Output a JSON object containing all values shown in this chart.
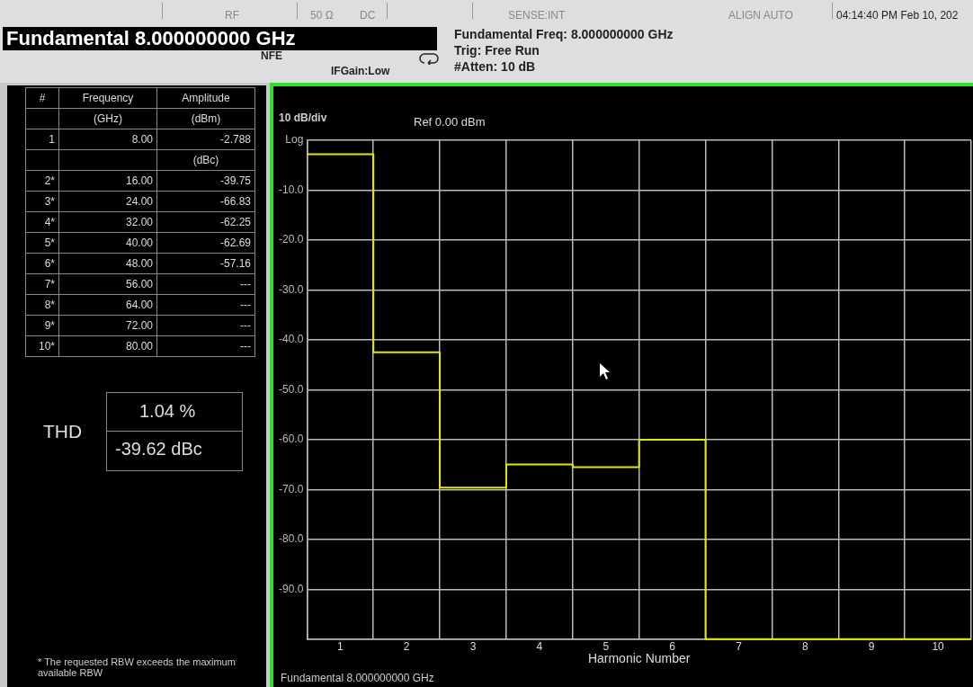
{
  "chart_data": {
    "type": "step",
    "title": "Fundamental 8.000000000 GHz",
    "xlabel": "Harmonic Number",
    "x": [
      0.5,
      1.5,
      2.5,
      3.5,
      4.5,
      5.5,
      6.5,
      7.5,
      8.5,
      9.5,
      10.5
    ],
    "series": [
      {
        "color": "#e6e600",
        "values": [
          -2.8,
          -42.5,
          -69.6,
          -65,
          -65.5,
          -60,
          -100,
          -100,
          -100,
          -100,
          -100
        ]
      }
    ],
    "xlim": [
      0.5,
      10.5
    ],
    "xticks": [
      {
        "value": 0.5,
        "label": null
      },
      1,
      {
        "value": 1.5,
        "label": null
      },
      2,
      {
        "value": 2.5,
        "label": null
      },
      3,
      {
        "value": 3.5,
        "label": null
      },
      4,
      {
        "value": 4.5,
        "label": null
      },
      5,
      {
        "value": 5.5,
        "label": null
      },
      6,
      {
        "value": 6.5,
        "label": null
      },
      7,
      {
        "value": 7.5,
        "label": null
      },
      8,
      {
        "value": 8.5,
        "label": null
      },
      9,
      {
        "value": 9.5,
        "label": null
      },
      10,
      {
        "value": 10.5,
        "label": null
      }
    ],
    "ylim": [
      -100,
      0
    ],
    "yticks": [
      {
        "value": 0,
        "label": "Log"
      },
      {
        "value": -10,
        "label": "-10.0"
      },
      {
        "value": -20,
        "label": "-20.0"
      },
      {
        "value": -30,
        "label": "-30.0"
      },
      {
        "value": -40,
        "label": "-40.0"
      },
      {
        "value": -50,
        "label": "-50.0"
      },
      {
        "value": -60,
        "label": "-60.0"
      },
      {
        "value": -70,
        "label": "-70.0"
      },
      {
        "value": -80,
        "label": "-80.0"
      },
      {
        "value": -90,
        "label": "-90.0"
      },
      {
        "value": -100,
        "label": null
      }
    ],
    "grid": true,
    "marker": "none",
    "line_style": "solid",
    "annotations": [
      "RF",
      "50 Ω",
      "DC",
      "SENSE:INT",
      "ALIGN AUTO",
      "04:14:40 PM Feb 10, 202",
      "NFE",
      "IFGain:Low",
      "Fundamental Freq: 8.000000000 GHz",
      "Trig: Free Run",
      "#Atten: 10 dB",
      "10 dB/div",
      "Ref 0.00 dBm",
      "THD",
      "1.04 %",
      "-39.62 dBc",
      "* The requested RBW exceeds the maximum available RBW",
      "Fundamental 8.000000000 GHz",
      "#\tFrequency\tAmplitude",
      "\t(GHz)\t(dBm)",
      "1\t8.00\t-2.788",
      "\t\t(dBc)",
      "2*\t16.00\t-39.75",
      "3*\t24.00\t-66.83",
      "4*\t32.00\t-62.25",
      "5*\t40.00\t-62.69",
      "6*\t48.00\t-57.16",
      "7*\t56.00\t---",
      "8*\t64.00\t---",
      "9*\t72.00\t---",
      "10*\t80.00\t---"
    ]
  }
}
